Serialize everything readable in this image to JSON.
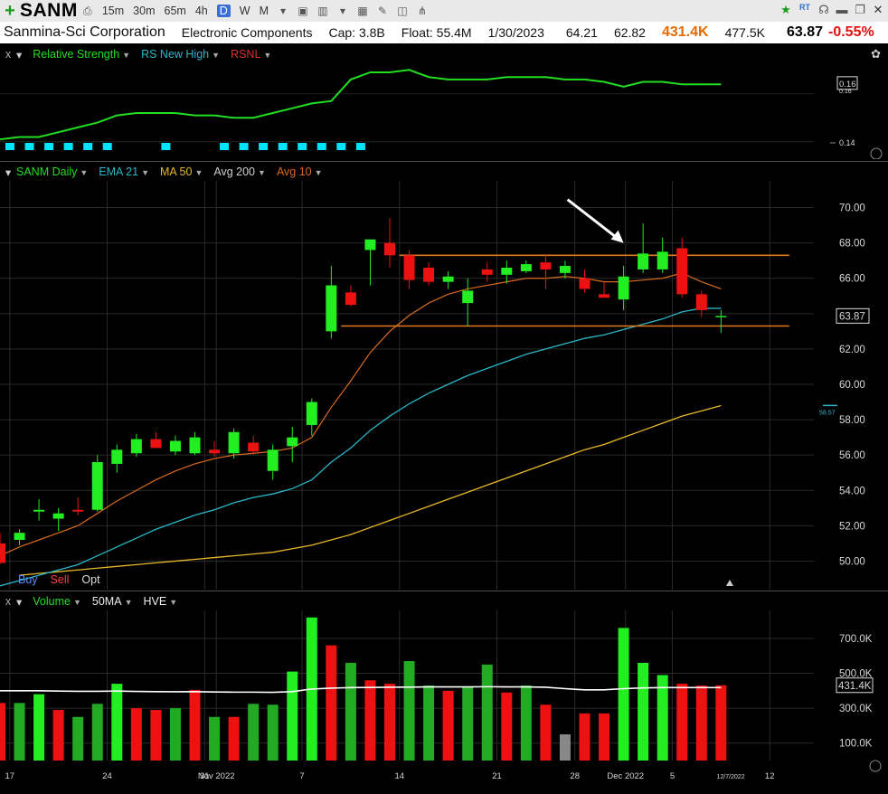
{
  "toolbar": {
    "symbol": "SANM",
    "timeframes": [
      "15m",
      "30m",
      "65m",
      "4h",
      "D",
      "W",
      "M"
    ],
    "active_timeframe": "D",
    "rt_label": "RT"
  },
  "info": {
    "company": "Sanmina-Sci Corporation",
    "industry": "Electronic Components",
    "cap": "Cap: 3.8B",
    "float": "Float: 55.4M",
    "date": "1/30/2023",
    "high": "64.21",
    "low": "62.82",
    "volume": "431.4K",
    "avg_volume": "477.5K",
    "last": "63.87",
    "change": "-0.55%"
  },
  "rs_panel": {
    "title": "Relative Strength",
    "rs_new_high": "RS New High",
    "rsnl": "RSNL",
    "value_label": "0.16",
    "value_label_faint": "0.16",
    "low_label": "0.14",
    "colors": {
      "line": "#22dd22",
      "marker": "#00e5ff",
      "rsnl": "#e03030"
    }
  },
  "price_panel": {
    "title": "SANM Daily",
    "ema": "EMA 21",
    "ma": "MA 50",
    "avg200": "Avg 200",
    "avg10": "Avg 10",
    "last_label": "63.87",
    "avg200_label": "58.57",
    "buy": "Buy",
    "sell": "Sell",
    "opt": "Opt",
    "colors": {
      "up": "#22ee22",
      "down": "#ee1111",
      "ema21": "#2ab7c9",
      "ma50": "#e8b82a",
      "avg10": "#d86a20",
      "hline": "#e07a20"
    }
  },
  "volume_panel": {
    "title": "Volume",
    "ma": "50MA",
    "hve": "HVE",
    "last_label": "431.4K"
  },
  "chart_data": [
    {
      "type": "candlestick",
      "title": "SANM Daily",
      "ylim": [
        49,
        71
      ],
      "y_ticks": [
        50,
        52,
        54,
        56,
        58,
        60,
        62,
        64,
        66,
        68,
        70
      ],
      "y_tick_labels": [
        "50.00",
        "52.00",
        "54.00",
        "56.00",
        "58.00",
        "60.00",
        "62.00",
        "64.00",
        "66.00",
        "68.00",
        "70.00"
      ],
      "x_date_labels": [
        "17",
        "24",
        "31",
        "Nov 2022",
        "7",
        "14",
        "21",
        "28",
        "Dec 2022",
        "5",
        "12"
      ],
      "x_date_positions": [
        0.5,
        5.5,
        10.5,
        11.1,
        15.5,
        20.5,
        25.5,
        29.5,
        32.1,
        34.5,
        39.5
      ],
      "last_date_label": "12/7/2022",
      "candles": [
        {
          "o": 51.0,
          "h": 51.6,
          "l": 49.8,
          "c": 49.9
        },
        {
          "o": 51.2,
          "h": 51.8,
          "l": 50.9,
          "c": 51.6
        },
        {
          "o": 52.8,
          "h": 53.5,
          "l": 52.3,
          "c": 52.9
        },
        {
          "o": 52.4,
          "h": 53.0,
          "l": 51.7,
          "c": 52.7
        },
        {
          "o": 52.9,
          "h": 53.6,
          "l": 52.6,
          "c": 52.8
        },
        {
          "o": 52.9,
          "h": 56.0,
          "l": 52.8,
          "c": 55.6
        },
        {
          "o": 55.5,
          "h": 56.6,
          "l": 55.0,
          "c": 56.3
        },
        {
          "o": 56.1,
          "h": 57.2,
          "l": 55.9,
          "c": 56.9
        },
        {
          "o": 56.9,
          "h": 57.3,
          "l": 56.4,
          "c": 56.4
        },
        {
          "o": 56.2,
          "h": 57.1,
          "l": 56.0,
          "c": 56.8
        },
        {
          "o": 56.1,
          "h": 57.3,
          "l": 56.0,
          "c": 57.0
        },
        {
          "o": 56.3,
          "h": 56.8,
          "l": 55.9,
          "c": 56.1
        },
        {
          "o": 56.1,
          "h": 57.5,
          "l": 55.8,
          "c": 57.3
        },
        {
          "o": 56.7,
          "h": 57.1,
          "l": 56.0,
          "c": 56.2
        },
        {
          "o": 55.1,
          "h": 56.6,
          "l": 54.6,
          "c": 56.3
        },
        {
          "o": 56.5,
          "h": 57.6,
          "l": 55.6,
          "c": 57.0
        },
        {
          "o": 57.7,
          "h": 59.2,
          "l": 57.1,
          "c": 59.0
        },
        {
          "o": 63.0,
          "h": 66.7,
          "l": 62.6,
          "c": 65.6
        },
        {
          "o": 65.2,
          "h": 65.6,
          "l": 64.4,
          "c": 64.5
        },
        {
          "o": 67.6,
          "h": 68.2,
          "l": 65.6,
          "c": 68.2
        },
        {
          "o": 68.0,
          "h": 69.4,
          "l": 66.6,
          "c": 67.3
        },
        {
          "o": 67.3,
          "h": 67.6,
          "l": 65.4,
          "c": 65.9
        },
        {
          "o": 66.6,
          "h": 66.9,
          "l": 65.6,
          "c": 65.8
        },
        {
          "o": 65.8,
          "h": 66.4,
          "l": 65.4,
          "c": 66.1
        },
        {
          "o": 64.6,
          "h": 66.0,
          "l": 63.3,
          "c": 65.3
        },
        {
          "o": 66.5,
          "h": 66.9,
          "l": 65.8,
          "c": 66.2
        },
        {
          "o": 66.2,
          "h": 67.0,
          "l": 65.7,
          "c": 66.6
        },
        {
          "o": 66.4,
          "h": 67.0,
          "l": 66.3,
          "c": 66.8
        },
        {
          "o": 66.9,
          "h": 67.3,
          "l": 65.4,
          "c": 66.5
        },
        {
          "o": 66.3,
          "h": 67.0,
          "l": 66.0,
          "c": 66.7
        },
        {
          "o": 66.0,
          "h": 66.5,
          "l": 65.2,
          "c": 65.4
        },
        {
          "o": 65.1,
          "h": 65.8,
          "l": 64.9,
          "c": 64.9
        },
        {
          "o": 64.8,
          "h": 66.7,
          "l": 64.2,
          "c": 66.1
        },
        {
          "o": 66.5,
          "h": 69.1,
          "l": 66.3,
          "c": 67.4
        },
        {
          "o": 66.5,
          "h": 68.3,
          "l": 66.3,
          "c": 67.5
        },
        {
          "o": 67.7,
          "h": 68.3,
          "l": 64.9,
          "c": 65.1
        },
        {
          "o": 65.1,
          "h": 65.3,
          "l": 63.8,
          "c": 64.2
        },
        {
          "o": 63.8,
          "h": 64.2,
          "l": 62.9,
          "c": 63.87
        }
      ],
      "ema21": [
        48.6,
        48.9,
        49.2,
        49.5,
        49.8,
        50.3,
        50.8,
        51.3,
        51.8,
        52.2,
        52.6,
        52.9,
        53.3,
        53.6,
        53.8,
        54.1,
        54.6,
        55.6,
        56.4,
        57.4,
        58.2,
        58.9,
        59.5,
        60.0,
        60.5,
        60.9,
        61.3,
        61.7,
        62.0,
        62.3,
        62.6,
        62.8,
        63.1,
        63.4,
        63.7,
        64.1,
        64.3,
        64.3
      ],
      "ma50": [
        null,
        49.2,
        49.3,
        49.4,
        49.5,
        49.6,
        49.7,
        49.8,
        49.9,
        50.0,
        50.1,
        50.2,
        50.3,
        50.4,
        50.5,
        50.7,
        50.9,
        51.2,
        51.5,
        51.9,
        52.3,
        52.7,
        53.1,
        53.5,
        53.9,
        54.3,
        54.7,
        55.1,
        55.5,
        55.9,
        56.3,
        56.6,
        57.0,
        57.4,
        57.8,
        58.2,
        58.5,
        58.8
      ],
      "avg10": [
        50.3,
        50.8,
        51.2,
        51.6,
        52.0,
        52.7,
        53.4,
        54.0,
        54.6,
        55.1,
        55.5,
        55.8,
        56.0,
        56.1,
        56.2,
        56.4,
        57.0,
        58.7,
        60.2,
        61.8,
        63.0,
        63.9,
        64.6,
        65.1,
        65.4,
        65.6,
        65.8,
        66.0,
        66.0,
        66.1,
        66.0,
        65.8,
        65.8,
        65.9,
        66.0,
        66.3,
        65.8,
        65.4
      ],
      "hlines": [
        {
          "y": 67.3,
          "from": 20.5,
          "to": 40.5
        },
        {
          "y": 63.3,
          "from": 17.5,
          "to": 40.5
        }
      ]
    },
    {
      "type": "bar",
      "title": "Volume",
      "ylim": [
        0,
        850
      ],
      "y_ticks": [
        100,
        300,
        500,
        700
      ],
      "y_tick_labels": [
        "100.0K",
        "300.0K",
        "500.0K",
        "700.0K"
      ],
      "values": [
        330,
        330,
        380,
        290,
        250,
        325,
        440,
        300,
        290,
        300,
        405,
        250,
        250,
        325,
        320,
        510,
        820,
        660,
        560,
        460,
        440,
        570,
        430,
        400,
        420,
        550,
        390,
        430,
        320,
        150,
        270,
        270,
        760,
        560,
        490,
        440,
        430,
        431.4
      ],
      "colors": [
        "#ee1111",
        "#22aa22",
        "#22ee22",
        "#ee1111",
        "#22aa22",
        "#22aa22",
        "#22ee22",
        "#ee1111",
        "#ee1111",
        "#22aa22",
        "#ee1111",
        "#22aa22",
        "#ee1111",
        "#22aa22",
        "#22aa22",
        "#22ee22",
        "#22ee22",
        "#ee1111",
        "#22aa22",
        "#ee1111",
        "#ee1111",
        "#22aa22",
        "#22aa22",
        "#ee1111",
        "#22aa22",
        "#22aa22",
        "#ee1111",
        "#22aa22",
        "#ee1111",
        "#888888",
        "#ee1111",
        "#ee1111",
        "#22ee22",
        "#22ee22",
        "#22ee22",
        "#ee1111",
        "#ee1111",
        "#ee1111"
      ],
      "ma50": [
        400,
        400,
        400,
        398,
        397,
        397,
        398,
        396,
        395,
        394,
        395,
        393,
        392,
        392,
        391,
        395,
        410,
        415,
        418,
        419,
        420,
        421,
        422,
        422,
        422,
        423,
        422,
        422,
        420,
        412,
        405,
        405,
        412,
        416,
        418,
        418,
        418,
        418
      ]
    },
    {
      "type": "line",
      "title": "Relative Strength",
      "ylim": [
        0.135,
        0.172
      ],
      "values": [
        0.141,
        0.142,
        0.142,
        0.144,
        0.146,
        0.148,
        0.151,
        0.152,
        0.152,
        0.152,
        0.151,
        0.151,
        0.15,
        0.15,
        0.152,
        0.154,
        0.156,
        0.157,
        0.166,
        0.169,
        0.169,
        0.17,
        0.167,
        0.166,
        0.166,
        0.166,
        0.167,
        0.167,
        0.167,
        0.166,
        0.166,
        0.165,
        0.163,
        0.165,
        0.165,
        0.164,
        0.164,
        0.164
      ],
      "rs_new_high_markers": [
        0,
        1,
        2,
        3,
        4,
        5,
        8,
        11,
        12,
        13,
        14,
        15,
        16,
        17,
        18
      ]
    }
  ]
}
